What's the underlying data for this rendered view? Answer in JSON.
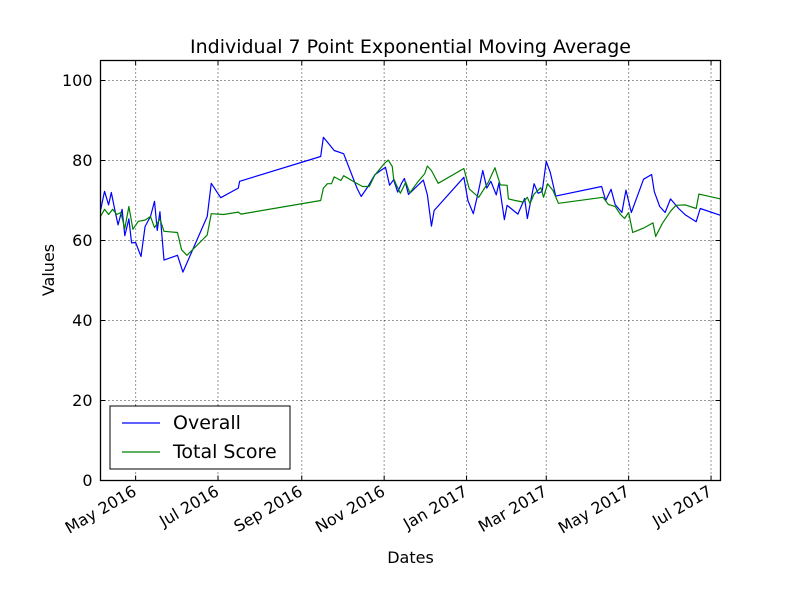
{
  "chart_data": {
    "type": "line",
    "title": "Individual 7 Point Exponential Moving Average",
    "xlabel": "Dates",
    "ylabel": "Values",
    "xlim": [
      "2016-04-05",
      "2017-07-08"
    ],
    "ylim": [
      0,
      105
    ],
    "x_tick_labels": [
      {
        "date": "2016-05-01",
        "label": "May 2016"
      },
      {
        "date": "2016-07-01",
        "label": "Jul 2016"
      },
      {
        "date": "2016-09-01",
        "label": "Sep 2016"
      },
      {
        "date": "2016-11-01",
        "label": "Nov 2016"
      },
      {
        "date": "2017-01-01",
        "label": "Jan 2017"
      },
      {
        "date": "2017-03-01",
        "label": "Mar 2017"
      },
      {
        "date": "2017-05-01",
        "label": "May 2017"
      },
      {
        "date": "2017-07-01",
        "label": "Jul 2017"
      }
    ],
    "y_ticks": [
      0,
      20,
      40,
      60,
      80,
      100
    ],
    "grid": true,
    "legend_position": "lower-left",
    "series": [
      {
        "name": "Overall",
        "color": "#0000ff",
        "points": [
          [
            "2016-04-05",
            67.5
          ],
          [
            "2016-04-08",
            72.3
          ],
          [
            "2016-04-11",
            68.9
          ],
          [
            "2016-04-13",
            72.0
          ],
          [
            "2016-04-16",
            67.0
          ],
          [
            "2016-04-18",
            63.9
          ],
          [
            "2016-04-21",
            67.8
          ],
          [
            "2016-04-23",
            61.2
          ],
          [
            "2016-04-26",
            65.4
          ],
          [
            "2016-04-28",
            59.4
          ],
          [
            "2016-05-01",
            59.5
          ],
          [
            "2016-05-05",
            56.0
          ],
          [
            "2016-05-08",
            63.5
          ],
          [
            "2016-05-12",
            66.0
          ],
          [
            "2016-05-15",
            69.8
          ],
          [
            "2016-05-17",
            62.5
          ],
          [
            "2016-05-19",
            67.2
          ],
          [
            "2016-05-22",
            55.1
          ],
          [
            "2016-06-01",
            56.3
          ],
          [
            "2016-06-05",
            52.1
          ],
          [
            "2016-06-23",
            66.0
          ],
          [
            "2016-06-26",
            74.3
          ],
          [
            "2016-07-03",
            70.7
          ],
          [
            "2016-07-16",
            73.1
          ],
          [
            "2016-07-17",
            74.8
          ],
          [
            "2016-09-15",
            81.0
          ],
          [
            "2016-09-17",
            85.8
          ],
          [
            "2016-09-20",
            84.6
          ],
          [
            "2016-09-25",
            82.5
          ],
          [
            "2016-10-02",
            81.7
          ],
          [
            "2016-10-12",
            73.0
          ],
          [
            "2016-10-15",
            71.0
          ],
          [
            "2016-10-20",
            73.5
          ],
          [
            "2016-10-25",
            76.4
          ],
          [
            "2016-10-29",
            77.4
          ],
          [
            "2016-11-02",
            78.3
          ],
          [
            "2016-11-05",
            73.8
          ],
          [
            "2016-11-08",
            75.2
          ],
          [
            "2016-11-11",
            72.1
          ],
          [
            "2016-11-14",
            74.4
          ],
          [
            "2016-11-16",
            75.5
          ],
          [
            "2016-11-19",
            71.5
          ],
          [
            "2016-11-30",
            75.1
          ],
          [
            "2016-12-03",
            71.4
          ],
          [
            "2016-12-06",
            63.6
          ],
          [
            "2016-12-08",
            67.5
          ],
          [
            "2016-12-30",
            75.8
          ],
          [
            "2017-01-02",
            70.0
          ],
          [
            "2017-01-06",
            66.7
          ],
          [
            "2017-01-10",
            72.6
          ],
          [
            "2017-01-13",
            77.5
          ],
          [
            "2017-01-16",
            73.1
          ],
          [
            "2017-01-19",
            74.8
          ],
          [
            "2017-01-23",
            71.4
          ],
          [
            "2017-01-25",
            74.4
          ],
          [
            "2017-01-29",
            65.2
          ],
          [
            "2017-01-31",
            68.8
          ],
          [
            "2017-02-08",
            66.6
          ],
          [
            "2017-02-13",
            70.5
          ],
          [
            "2017-02-15",
            65.5
          ],
          [
            "2017-02-20",
            74.2
          ],
          [
            "2017-02-23",
            71.8
          ],
          [
            "2017-02-26",
            72.3
          ],
          [
            "2017-03-01",
            79.8
          ],
          [
            "2017-03-04",
            77.0
          ],
          [
            "2017-03-08",
            71.1
          ],
          [
            "2017-04-11",
            73.5
          ],
          [
            "2017-04-14",
            70.0
          ],
          [
            "2017-04-18",
            72.8
          ],
          [
            "2017-04-21",
            69.0
          ],
          [
            "2017-04-26",
            67.0
          ],
          [
            "2017-04-29",
            72.6
          ],
          [
            "2017-05-03",
            67.0
          ],
          [
            "2017-05-12",
            75.3
          ],
          [
            "2017-05-18",
            76.5
          ],
          [
            "2017-05-20",
            72.2
          ],
          [
            "2017-05-24",
            68.5
          ],
          [
            "2017-05-28",
            67.0
          ],
          [
            "2017-06-01",
            70.4
          ],
          [
            "2017-06-07",
            68.0
          ],
          [
            "2017-06-12",
            66.4
          ],
          [
            "2017-06-20",
            64.7
          ],
          [
            "2017-06-23",
            68.0
          ],
          [
            "2017-07-08",
            66.3
          ]
        ]
      },
      {
        "name": "Total Score",
        "color": "#008000",
        "points": [
          [
            "2016-04-05",
            66.0
          ],
          [
            "2016-04-08",
            67.8
          ],
          [
            "2016-04-11",
            66.5
          ],
          [
            "2016-04-14",
            67.8
          ],
          [
            "2016-04-17",
            66.5
          ],
          [
            "2016-04-20",
            67.0
          ],
          [
            "2016-04-23",
            63.0
          ],
          [
            "2016-04-26",
            68.5
          ],
          [
            "2016-04-29",
            62.8
          ],
          [
            "2016-05-03",
            64.8
          ],
          [
            "2016-05-08",
            65.1
          ],
          [
            "2016-05-12",
            66.0
          ],
          [
            "2016-05-15",
            63.2
          ],
          [
            "2016-05-19",
            65.4
          ],
          [
            "2016-05-22",
            62.3
          ],
          [
            "2016-06-01",
            62.0
          ],
          [
            "2016-06-04",
            57.7
          ],
          [
            "2016-06-08",
            56.3
          ],
          [
            "2016-06-19",
            60.0
          ],
          [
            "2016-06-23",
            61.4
          ],
          [
            "2016-06-26",
            66.7
          ],
          [
            "2016-07-05",
            66.5
          ],
          [
            "2016-07-16",
            67.1
          ],
          [
            "2016-07-18",
            66.6
          ],
          [
            "2016-09-15",
            70.0
          ],
          [
            "2016-09-17",
            73.1
          ],
          [
            "2016-09-20",
            74.2
          ],
          [
            "2016-09-23",
            74.2
          ],
          [
            "2016-09-25",
            75.9
          ],
          [
            "2016-09-30",
            75.0
          ],
          [
            "2016-10-02",
            76.2
          ],
          [
            "2016-10-10",
            74.6
          ],
          [
            "2016-10-16",
            73.5
          ],
          [
            "2016-10-21",
            73.5
          ],
          [
            "2016-10-25",
            76.3
          ],
          [
            "2016-11-01",
            79.2
          ],
          [
            "2016-11-04",
            80.1
          ],
          [
            "2016-11-07",
            78.5
          ],
          [
            "2016-11-08",
            75.5
          ],
          [
            "2016-11-10",
            73.9
          ],
          [
            "2016-11-13",
            71.8
          ],
          [
            "2016-11-17",
            74.6
          ],
          [
            "2016-11-20",
            71.9
          ],
          [
            "2016-11-26",
            74.7
          ],
          [
            "2016-12-01",
            76.7
          ],
          [
            "2016-12-03",
            78.6
          ],
          [
            "2016-12-06",
            77.5
          ],
          [
            "2016-12-11",
            74.3
          ],
          [
            "2016-12-30",
            78.0
          ],
          [
            "2017-01-03",
            72.9
          ],
          [
            "2017-01-10",
            70.8
          ],
          [
            "2017-01-17",
            74.5
          ],
          [
            "2017-01-22",
            78.2
          ],
          [
            "2017-01-26",
            73.9
          ],
          [
            "2017-01-31",
            73.8
          ],
          [
            "2017-02-01",
            70.4
          ],
          [
            "2017-02-06",
            70.0
          ],
          [
            "2017-02-12",
            69.6
          ],
          [
            "2017-02-15",
            70.8
          ],
          [
            "2017-02-17",
            69.2
          ],
          [
            "2017-02-20",
            71.6
          ],
          [
            "2017-02-25",
            73.2
          ],
          [
            "2017-02-27",
            70.8
          ],
          [
            "2017-03-02",
            74.2
          ],
          [
            "2017-03-06",
            72.5
          ],
          [
            "2017-03-10",
            69.3
          ],
          [
            "2017-04-12",
            70.8
          ],
          [
            "2017-04-16",
            69.0
          ],
          [
            "2017-04-18",
            68.8
          ],
          [
            "2017-04-21",
            68.5
          ],
          [
            "2017-04-25",
            66.5
          ],
          [
            "2017-04-28",
            65.5
          ],
          [
            "2017-05-01",
            67.0
          ],
          [
            "2017-05-04",
            62.0
          ],
          [
            "2017-05-12",
            63.1
          ],
          [
            "2017-05-19",
            64.4
          ],
          [
            "2017-05-21",
            61.0
          ],
          [
            "2017-05-26",
            64.3
          ],
          [
            "2017-06-01",
            67.3
          ],
          [
            "2017-06-05",
            68.8
          ],
          [
            "2017-06-12",
            68.9
          ],
          [
            "2017-06-20",
            68.0
          ],
          [
            "2017-06-22",
            71.6
          ],
          [
            "2017-07-08",
            70.4
          ]
        ]
      }
    ]
  }
}
